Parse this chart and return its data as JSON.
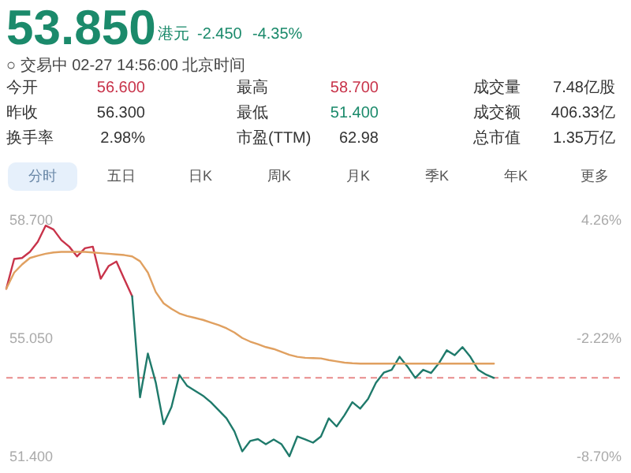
{
  "chart_data": {
    "type": "line",
    "title": "53.850",
    "subtitle": "○ 交易中 02-27 14:56:00 北京时间",
    "annotations": [
      "港元",
      "-2.450",
      "-4.35%",
      "今开",
      "56.600",
      "最高",
      "58.700",
      "成交量",
      "7.48亿股",
      "昨收",
      "56.300",
      "最低",
      "51.400",
      "成交额",
      "406.33亿",
      "换手率",
      "2.98%",
      "市盈(TTM)",
      "62.98",
      "总市值",
      "1.35万亿",
      "分时",
      "五日",
      "日K",
      "周K",
      "月K",
      "季K",
      "年K",
      "更多"
    ],
    "categories": [
      null,
      null,
      null,
      null,
      null,
      null,
      null,
      null,
      null,
      null,
      null,
      null,
      null,
      null,
      null,
      null,
      null,
      null,
      null,
      null,
      null,
      null,
      null,
      null,
      null,
      null,
      null,
      null,
      null,
      null,
      null,
      null,
      null,
      null,
      null,
      null,
      null,
      null,
      null,
      null,
      null,
      null,
      null,
      null,
      null,
      null,
      null,
      null,
      null,
      null,
      null,
      null,
      null,
      null,
      null,
      null,
      null,
      null,
      null,
      null,
      null,
      null,
      null,
      null,
      null,
      null,
      null,
      null,
      null,
      null
    ],
    "series": [
      {
        "color": "#c8334a",
        "values": [
          56.6,
          57.52,
          57.55,
          57.74,
          58.05,
          58.55,
          58.43,
          58.1,
          57.9,
          57.6,
          57.85,
          57.9,
          56.91,
          57.3,
          57.44,
          56.9,
          56.37,
          null,
          null,
          null,
          null,
          null,
          null,
          null,
          null,
          null,
          null,
          null,
          null,
          null,
          null,
          null,
          null,
          null,
          null,
          null,
          null,
          null,
          null,
          null,
          null,
          null,
          null,
          null,
          null,
          null,
          null,
          null,
          null,
          null,
          null,
          null,
          null,
          null,
          null,
          null,
          null,
          null,
          null,
          null,
          null,
          null,
          null,
          null,
          null,
          null,
          null,
          null,
          null,
          null
        ]
      },
      {
        "color": "#1f7a6b",
        "values": [
          null,
          null,
          null,
          null,
          null,
          null,
          null,
          null,
          null,
          null,
          null,
          null,
          null,
          null,
          null,
          null,
          56.37,
          53.25,
          54.6,
          53.71,
          52.42,
          52.95,
          53.94,
          53.6,
          53.45,
          53.3,
          53.1,
          52.85,
          52.6,
          52.2,
          51.58,
          51.9,
          51.96,
          51.8,
          51.95,
          51.8,
          51.43,
          52.04,
          51.95,
          51.85,
          52.04,
          52.6,
          52.35,
          52.7,
          53.1,
          52.9,
          53.2,
          53.7,
          54.01,
          54.1,
          54.5,
          54.2,
          53.85,
          54.1,
          54.0,
          54.3,
          54.7,
          54.55,
          54.8,
          54.5,
          54.1,
          53.95,
          53.85,
          null,
          null,
          null,
          null,
          null,
          null,
          null
        ]
      },
      {
        "color": "#e0a060",
        "values": [
          56.6,
          57.1,
          57.35,
          57.55,
          57.62,
          57.68,
          57.72,
          57.74,
          57.74,
          57.74,
          57.74,
          57.72,
          57.7,
          57.68,
          57.66,
          57.64,
          57.6,
          57.45,
          57.1,
          56.5,
          56.15,
          55.98,
          55.84,
          55.76,
          55.7,
          55.64,
          55.56,
          55.48,
          55.38,
          55.25,
          55.08,
          54.97,
          54.89,
          54.8,
          54.74,
          54.65,
          54.56,
          54.5,
          54.47,
          54.46,
          54.45,
          54.4,
          54.36,
          54.32,
          54.3,
          54.29,
          54.29,
          54.29,
          54.29,
          54.29,
          54.29,
          54.29,
          54.29,
          54.29,
          54.29,
          54.29,
          54.29,
          54.29,
          54.29,
          54.29,
          54.29,
          54.29,
          54.29,
          null,
          null,
          null,
          null,
          null,
          null,
          null
        ]
      }
    ],
    "ylim": [
      51.4,
      58.7
    ],
    "yticks": [
      {
        "value": 58.7,
        "label": "58.700"
      },
      {
        "value": 55.05,
        "label": "55.050"
      },
      {
        "value": 51.4,
        "label": "51.400"
      }
    ],
    "y2lim": [
      -8.7,
      4.26
    ],
    "y2ticks": [
      {
        "value": 4.26,
        "label": "4.26%"
      },
      {
        "value": -2.22,
        "label": "-2.22%"
      },
      {
        "value": -8.7,
        "label": "-8.70%"
      }
    ],
    "ref_lines": [
      {
        "axis": "y",
        "value": 53.85,
        "color": "#e88a8a",
        "line_style": "dashed"
      }
    ]
  }
}
